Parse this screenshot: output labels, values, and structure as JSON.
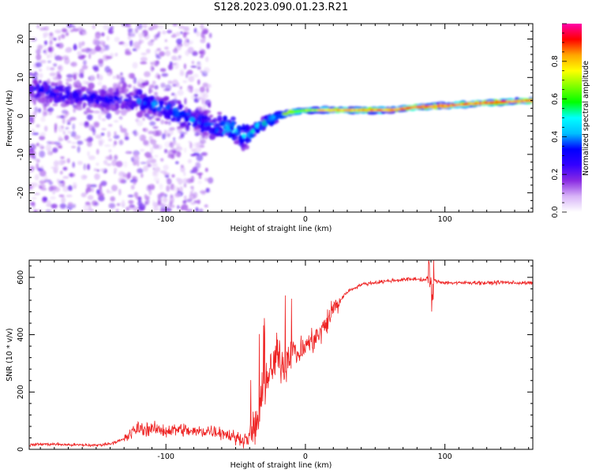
{
  "title": "S128.2023.090.01.23.R21",
  "chart_data": [
    {
      "type": "heatmap",
      "xlabel": "Height of straight line (km)",
      "ylabel": "Frequency (Hz)",
      "xlim": [
        -198,
        163
      ],
      "ylim": [
        -25,
        24
      ],
      "xticks": [
        -100,
        0,
        100
      ],
      "yticks": [
        -20,
        -10,
        0,
        10,
        20
      ],
      "grid": false,
      "colorbar": {
        "label": "Normalized spectral amplitude",
        "range": [
          0,
          1
        ],
        "ticks": [
          0.0,
          0.2,
          0.4,
          0.6,
          0.8
        ],
        "colormap": [
          "#ffffff",
          "#d8b4f8",
          "#8a2be2",
          "#3300ff",
          "#0000ff",
          "#00bfff",
          "#00ffff",
          "#00ff00",
          "#7fff00",
          "#ffff00",
          "#ffa500",
          "#ff0000",
          "#ff00aa"
        ]
      },
      "ridge": {
        "x": [
          -195,
          -180,
          -160,
          -140,
          -120,
          -100,
          -80,
          -65,
          -55,
          -45,
          -40,
          -35,
          -30,
          -25,
          -20,
          -10,
          0,
          20,
          40,
          60,
          80,
          100,
          120,
          140,
          163
        ],
        "y": [
          7,
          6,
          5,
          4,
          4,
          2,
          -1,
          -3,
          -3,
          -5,
          -5,
          -3,
          -2,
          -1,
          0,
          1,
          1.5,
          1.5,
          1.5,
          1.5,
          2.3,
          2.6,
          3.2,
          3.6,
          4.0
        ]
      }
    },
    {
      "type": "line",
      "xlabel": "Height of straight line (km)",
      "ylabel": "SNR (10 * v/v)",
      "xlim": [
        -198,
        163
      ],
      "ylim": [
        0,
        660
      ],
      "xticks": [
        -100,
        0,
        100
      ],
      "yticks": [
        0,
        200,
        400,
        600
      ],
      "grid": false,
      "color": "#ee2222",
      "series": [
        {
          "x": [
            -198,
            -190,
            -180,
            -170,
            -160,
            -150,
            -140,
            -130,
            -125,
            -120,
            -115,
            -110,
            -100,
            -90,
            -80,
            -70,
            -60,
            -55,
            -50,
            -45,
            -40,
            -35,
            -30,
            -25,
            -20,
            -15,
            -10,
            -5,
            0,
            5,
            10,
            15,
            20,
            25,
            30,
            40,
            50,
            60,
            70,
            80,
            85,
            88,
            90,
            92,
            95,
            100,
            110,
            120,
            130,
            140,
            150,
            160,
            163
          ],
          "y": [
            15,
            18,
            18,
            16,
            15,
            14,
            20,
            35,
            55,
            75,
            70,
            72,
            65,
            70,
            60,
            65,
            60,
            50,
            40,
            35,
            40,
            90,
            200,
            270,
            330,
            300,
            350,
            330,
            360,
            380,
            400,
            440,
            490,
            520,
            550,
            575,
            582,
            588,
            592,
            595,
            590,
            600,
            560,
            590,
            585,
            582,
            580,
            582,
            580,
            583,
            581,
            580,
            580
          ]
        }
      ]
    }
  ]
}
